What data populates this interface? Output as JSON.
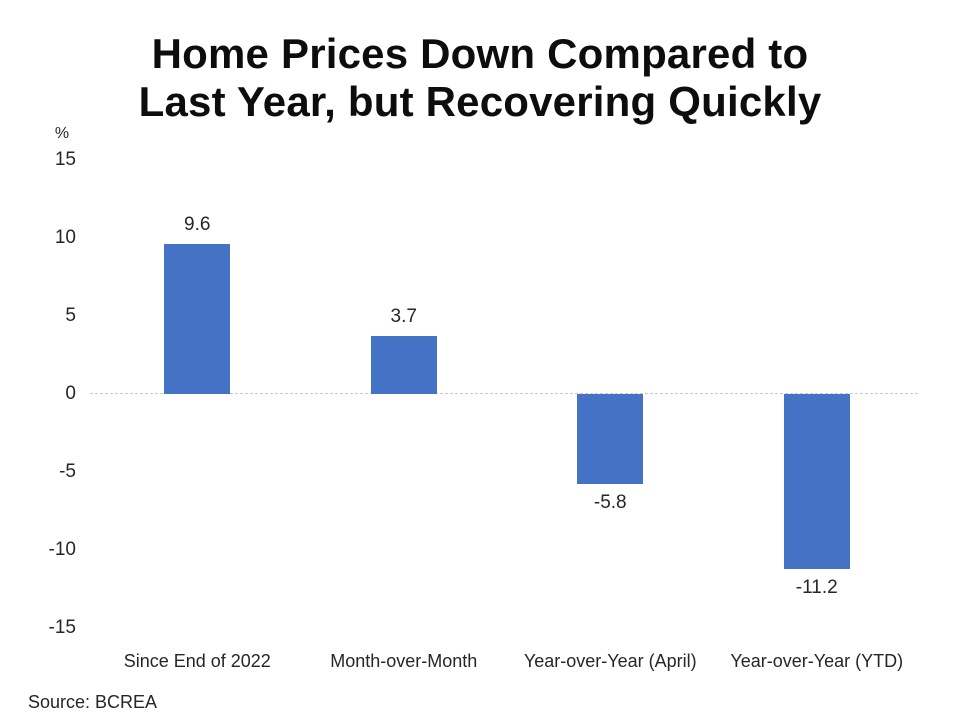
{
  "title": {
    "line1": "Home Prices Down Compared to",
    "line2": "Last Year, but Recovering Quickly"
  },
  "source_text": "Source: BCREA",
  "chart_data": {
    "type": "bar",
    "title": "Home Prices Down Compared to Last Year, but Recovering Quickly",
    "categories": [
      "Since End of 2022",
      "Month-over-Month",
      "Year-over-Year (April)",
      "Year-over-Year (YTD)"
    ],
    "values": [
      9.6,
      3.7,
      -5.8,
      -11.2
    ],
    "data_labels": [
      "9.6",
      "3.7",
      "-5.8",
      "-11.2"
    ],
    "xlabel": "",
    "ylabel": "%",
    "ylim": [
      -15,
      15
    ],
    "yticks": [
      15,
      10,
      5,
      0,
      -5,
      -10,
      -15
    ],
    "grid": "dashed horizontal line at zero only",
    "legend": "none",
    "bar_color": "#4472C4",
    "annotation": "Source: BCREA"
  },
  "colors": {
    "bar": "#4472C4",
    "gridline": "#c9c9c9",
    "axis_text": "#262626",
    "title_text": "#0d0d0d",
    "background": "#ffffff"
  }
}
